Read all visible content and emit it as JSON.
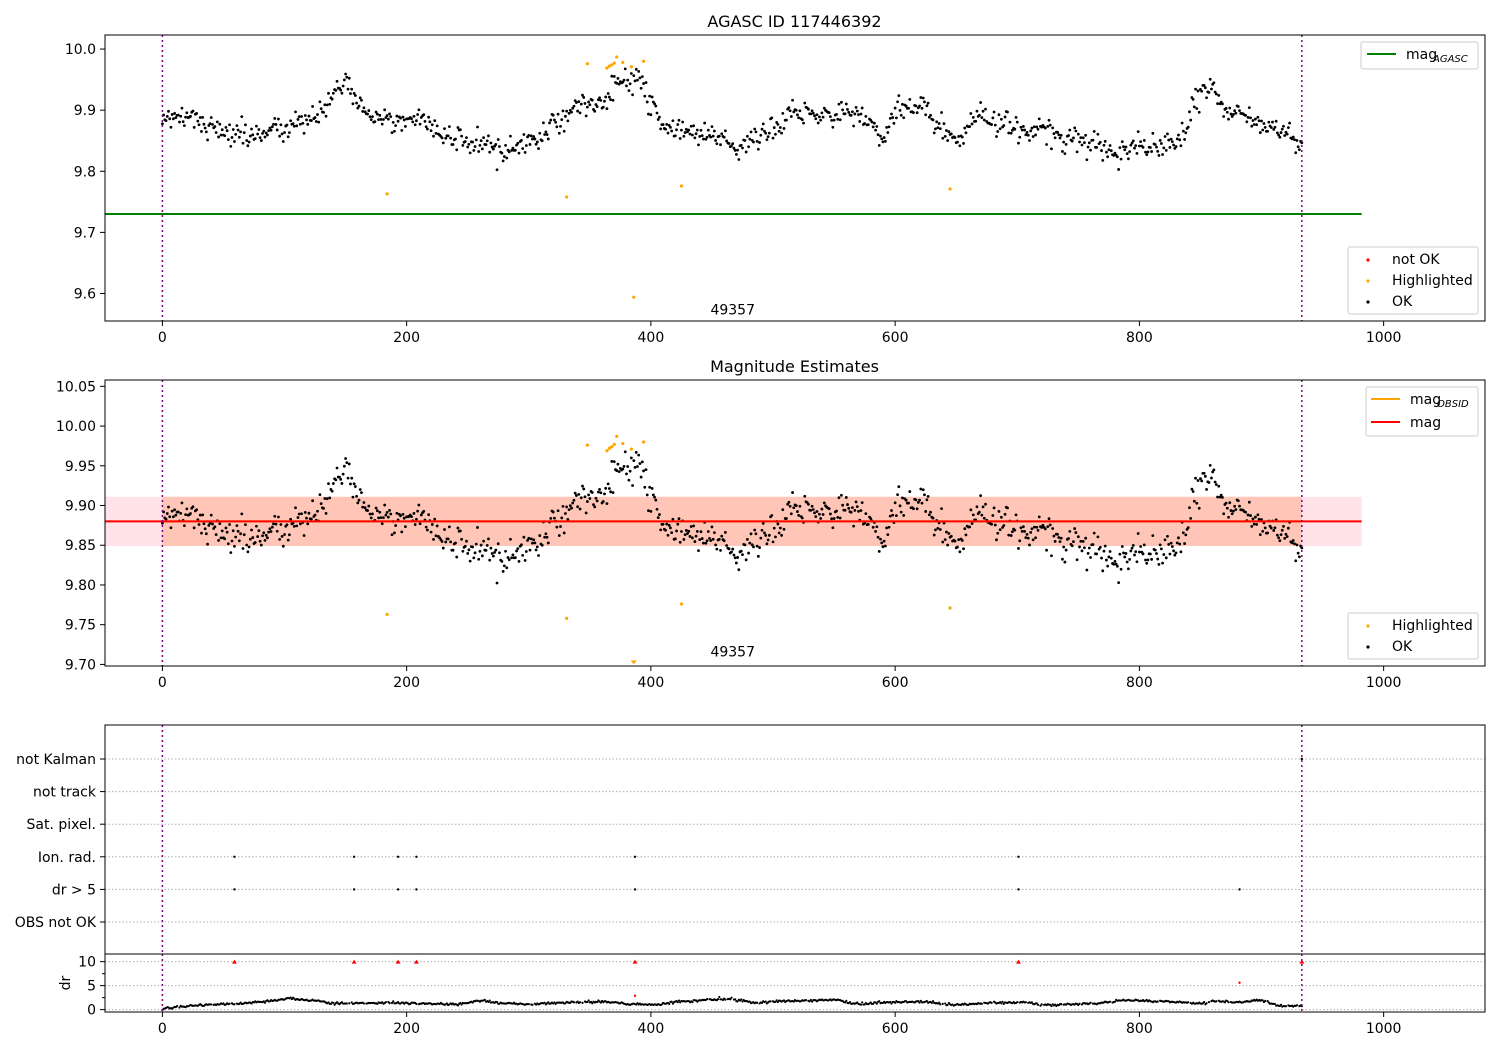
{
  "chart_data": [
    {
      "type": "scatter",
      "title": "AGASC ID 117446392",
      "xlim": [
        -47,
        1083
      ],
      "ylim": [
        9.555,
        10.023
      ],
      "xticks": [
        0,
        200,
        400,
        600,
        800,
        1000
      ],
      "yticks": [
        9.6,
        9.7,
        9.8,
        9.9,
        10.0
      ],
      "ytick_labels": [
        "9.6",
        "9.7",
        "9.8",
        "9.9",
        "10.0"
      ],
      "vlines": [
        0,
        933
      ],
      "hline": {
        "name": "mag",
        "subscript": "AGASC",
        "y": 9.73,
        "x_range": [
          -47,
          982
        ],
        "color": "#008000"
      },
      "annotation": {
        "text": "49357",
        "x": 467,
        "y": 9.574
      },
      "legend_lines": [
        {
          "name": "mag",
          "subscript": "AGASC",
          "color": "#008000"
        }
      ],
      "legend_points": [
        {
          "name": "not OK",
          "color": "#ff0000"
        },
        {
          "name": "Highlighted",
          "color": "#ffa500"
        },
        {
          "name": "OK",
          "color": "#000000"
        }
      ],
      "highlighted": [
        [
          184,
          9.763
        ],
        [
          331,
          9.758
        ],
        [
          348,
          9.976
        ],
        [
          364,
          9.969
        ],
        [
          366,
          9.972
        ],
        [
          368,
          9.974
        ],
        [
          370,
          9.977
        ],
        [
          372,
          9.987
        ],
        [
          377,
          9.978
        ],
        [
          384,
          9.971
        ],
        [
          386,
          9.594
        ],
        [
          394,
          9.98
        ],
        [
          425,
          9.776
        ],
        [
          645,
          9.771
        ]
      ],
      "ok_series": "mag"
    },
    {
      "type": "scatter",
      "title": "Magnitude Estimates",
      "xlim": [
        -47,
        1083
      ],
      "ylim": [
        9.698,
        10.058
      ],
      "xticks": [
        0,
        200,
        400,
        600,
        800,
        1000
      ],
      "yticks": [
        9.7,
        9.75,
        9.8,
        9.85,
        9.9,
        9.95,
        10.0,
        10.05
      ],
      "ytick_labels": [
        "9.70",
        "9.75",
        "9.80",
        "9.85",
        "9.90",
        "9.95",
        "10.00",
        "10.05"
      ],
      "vlines": [
        0,
        933
      ],
      "bands": [
        {
          "name": "mag",
          "y1": 9.849,
          "y2": 9.911,
          "x_range": [
            -47,
            982
          ],
          "color": "#ffc0cb"
        },
        {
          "name": "mag_OBSID",
          "y1": 9.849,
          "y2": 9.911,
          "x_range": [
            0,
            933
          ],
          "color": "#ffa07a"
        }
      ],
      "lines": [
        {
          "name": "mag",
          "subscript": "OBSID",
          "y": 9.88,
          "x_range": [
            0,
            933
          ],
          "color": "#ffa500"
        },
        {
          "name": "mag",
          "y": 9.88,
          "x_range": [
            -47,
            982
          ],
          "color": "#ff0000"
        }
      ],
      "annotation": {
        "text": "49357",
        "x": 467,
        "y": 9.716
      },
      "legend_lines": [
        {
          "name": "mag",
          "subscript": "OBSID",
          "color": "#ffa500"
        },
        {
          "name": "mag",
          "subscript": "",
          "color": "#ff0000"
        }
      ],
      "legend_points": [
        {
          "name": "Highlighted",
          "color": "#ffa500"
        },
        {
          "name": "OK",
          "color": "#000000"
        }
      ],
      "highlighted": [
        [
          184,
          9.763
        ],
        [
          331,
          9.758
        ],
        [
          348,
          9.976
        ],
        [
          364,
          9.969
        ],
        [
          366,
          9.972
        ],
        [
          368,
          9.974
        ],
        [
          370,
          9.977
        ],
        [
          372,
          9.987
        ],
        [
          377,
          9.978
        ],
        [
          384,
          9.971
        ],
        [
          394,
          9.98
        ],
        [
          425,
          9.776
        ],
        [
          645,
          9.771
        ]
      ],
      "lower_marker": {
        "x": 386,
        "y": 9.7,
        "color": "#ffa500"
      },
      "ok_series": "mag"
    },
    {
      "type": "scatter",
      "title": "",
      "xlim": [
        -47,
        1083
      ],
      "ylim": [
        0,
        7
      ],
      "ytick_labels": [
        "not Kalman",
        "not track",
        "Sat. pixel.",
        "Ion. rad.",
        "dr > 5",
        "OBS not OK"
      ],
      "vlines": [
        0,
        933
      ],
      "flags": {
        "not Kalman": [
          933
        ],
        "not track": [],
        "Sat. pixel.": [],
        "Ion. rad.": [
          59,
          157,
          193,
          208,
          387,
          701
        ],
        "dr > 5": [
          59,
          157,
          193,
          208,
          387,
          701,
          882
        ],
        "OBS not OK": []
      }
    },
    {
      "type": "scatter",
      "title": "",
      "ylabel": "dr",
      "xlim": [
        -47,
        1083
      ],
      "ylim": [
        -0.5,
        11.6
      ],
      "xticks": [
        0,
        200,
        400,
        600,
        800,
        1000
      ],
      "yticks": [
        0,
        5,
        10
      ],
      "ytick_labels": [
        "0",
        "5",
        "10"
      ],
      "vlines": [
        0,
        933
      ],
      "outliers": [
        {
          "x": 59,
          "y": 10,
          "marker": "triangle"
        },
        {
          "x": 157,
          "y": 10,
          "marker": "triangle"
        },
        {
          "x": 193,
          "y": 10,
          "marker": "triangle"
        },
        {
          "x": 208,
          "y": 10,
          "marker": "triangle"
        },
        {
          "x": 387,
          "y": 10,
          "marker": "triangle"
        },
        {
          "x": 701,
          "y": 10,
          "marker": "triangle"
        },
        {
          "x": 933,
          "y": 10,
          "marker": "triangle"
        },
        {
          "x": 882,
          "y": 5.6,
          "marker": "dot"
        },
        {
          "x": 387,
          "y": 2.9,
          "marker": "dot"
        }
      ],
      "dr_series": "smooth"
    }
  ],
  "mag_curve": {
    "n": 934,
    "knots": [
      [
        0,
        9.89
      ],
      [
        20,
        9.89
      ],
      [
        40,
        9.87
      ],
      [
        60,
        9.86
      ],
      [
        80,
        9.86
      ],
      [
        100,
        9.87
      ],
      [
        115,
        9.88
      ],
      [
        130,
        9.9
      ],
      [
        145,
        9.93
      ],
      [
        152,
        9.95
      ],
      [
        160,
        9.91
      ],
      [
        175,
        9.89
      ],
      [
        190,
        9.88
      ],
      [
        210,
        9.89
      ],
      [
        230,
        9.86
      ],
      [
        250,
        9.85
      ],
      [
        270,
        9.84
      ],
      [
        290,
        9.84
      ],
      [
        310,
        9.86
      ],
      [
        325,
        9.88
      ],
      [
        340,
        9.91
      ],
      [
        360,
        9.91
      ],
      [
        375,
        9.95
      ],
      [
        390,
        9.95
      ],
      [
        400,
        9.92
      ],
      [
        410,
        9.87
      ],
      [
        430,
        9.87
      ],
      [
        450,
        9.86
      ],
      [
        470,
        9.84
      ],
      [
        485,
        9.85
      ],
      [
        500,
        9.87
      ],
      [
        520,
        9.9
      ],
      [
        540,
        9.89
      ],
      [
        560,
        9.9
      ],
      [
        580,
        9.88
      ],
      [
        590,
        9.85
      ],
      [
        600,
        9.9
      ],
      [
        620,
        9.91
      ],
      [
        640,
        9.87
      ],
      [
        650,
        9.85
      ],
      [
        670,
        9.89
      ],
      [
        690,
        9.88
      ],
      [
        700,
        9.87
      ],
      [
        720,
        9.87
      ],
      [
        740,
        9.85
      ],
      [
        760,
        9.85
      ],
      [
        780,
        9.83
      ],
      [
        800,
        9.84
      ],
      [
        820,
        9.84
      ],
      [
        835,
        9.86
      ],
      [
        850,
        9.93
      ],
      [
        860,
        9.94
      ],
      [
        870,
        9.9
      ],
      [
        880,
        9.9
      ],
      [
        890,
        9.89
      ],
      [
        910,
        9.87
      ],
      [
        920,
        9.86
      ],
      [
        933,
        9.84
      ]
    ],
    "noise": 0.016
  },
  "dr_curve": {
    "knots": [
      [
        0,
        0.3
      ],
      [
        30,
        0.9
      ],
      [
        60,
        1.2
      ],
      [
        80,
        1.6
      ],
      [
        105,
        2.3
      ],
      [
        120,
        2.0
      ],
      [
        140,
        1.3
      ],
      [
        180,
        1.4
      ],
      [
        210,
        1.3
      ],
      [
        240,
        1.1
      ],
      [
        260,
        1.8
      ],
      [
        280,
        1.4
      ],
      [
        300,
        1.1
      ],
      [
        330,
        1.5
      ],
      [
        360,
        1.6
      ],
      [
        385,
        1.2
      ],
      [
        400,
        1.0
      ],
      [
        430,
        1.8
      ],
      [
        460,
        2.2
      ],
      [
        490,
        1.5
      ],
      [
        520,
        1.8
      ],
      [
        550,
        2.0
      ],
      [
        570,
        1.2
      ],
      [
        600,
        1.5
      ],
      [
        620,
        1.7
      ],
      [
        650,
        1.0
      ],
      [
        680,
        1.4
      ],
      [
        705,
        1.5
      ],
      [
        720,
        1.0
      ],
      [
        760,
        1.2
      ],
      [
        790,
        2.0
      ],
      [
        820,
        1.7
      ],
      [
        850,
        1.3
      ],
      [
        865,
        1.8
      ],
      [
        880,
        1.5
      ],
      [
        900,
        1.9
      ],
      [
        915,
        0.8
      ],
      [
        933,
        0.9
      ]
    ]
  }
}
